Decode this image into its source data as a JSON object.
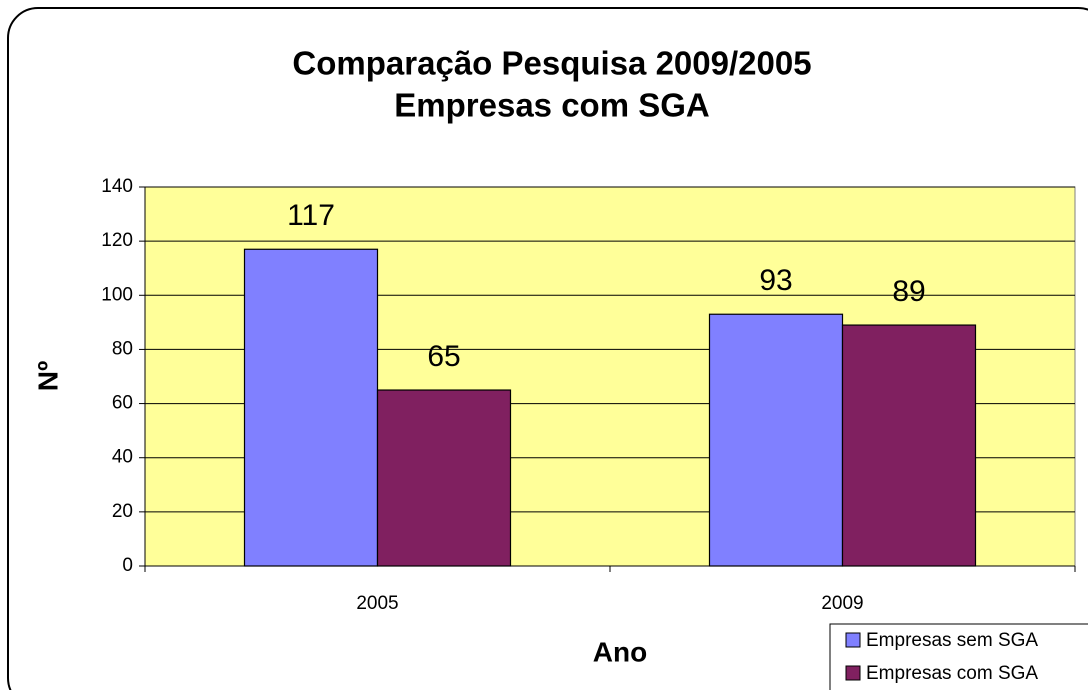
{
  "chart_data": {
    "type": "bar",
    "title": [
      "Comparação Pesquisa 2009/2005",
      "Empresas com SGA"
    ],
    "x_label": "Ano",
    "y_label": "Nº",
    "categories": [
      "2005",
      "2009"
    ],
    "series": [
      {
        "name": "Empresas sem SGA",
        "color": "#8080ff",
        "values": [
          117,
          93
        ]
      },
      {
        "name": "Empresas com SGA",
        "color": "#802060",
        "values": [
          65,
          89
        ]
      }
    ],
    "ylim": [
      0,
      140
    ],
    "yticks": [
      0,
      20,
      40,
      60,
      80,
      100,
      120,
      140
    ],
    "grid": true,
    "plot_background": "#ffff99",
    "legend": "bottom-right",
    "data_labels": true
  }
}
